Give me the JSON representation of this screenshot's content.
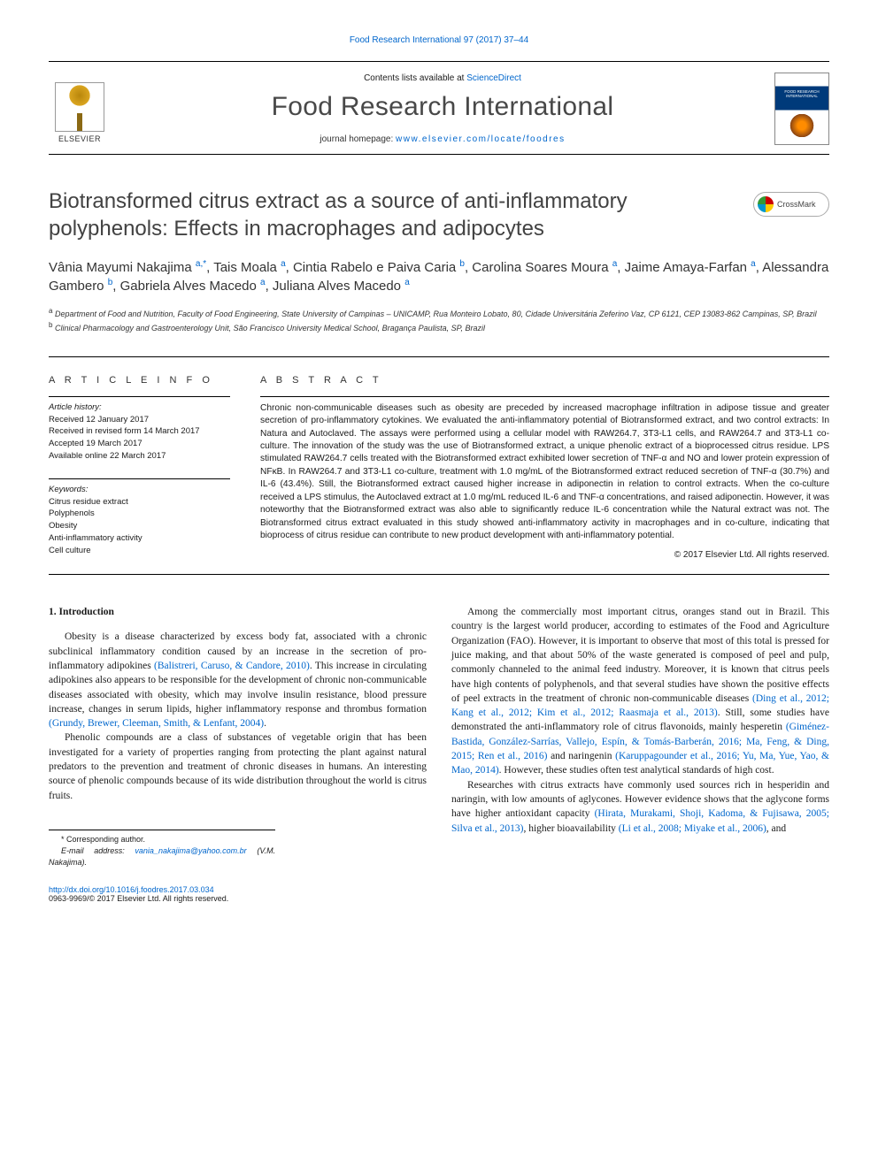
{
  "top_citation": "Food Research International 97 (2017) 37–44",
  "header": {
    "publisher": "ELSEVIER",
    "contents_prefix": "Contents lists available at ",
    "contents_link": "ScienceDirect",
    "journal": "Food Research International",
    "homepage_prefix": "journal homepage: ",
    "homepage_url": "www.elsevier.com/locate/foodres",
    "crossmark": "CrossMark"
  },
  "title": "Biotransformed citrus extract as a source of anti-inflammatory polyphenols: Effects in macrophages and adipocytes",
  "authors_html": "Vânia Mayumi Nakajima <sup>a,*</sup>, Tais Moala <sup>a</sup>, Cintia Rabelo e Paiva Caria <sup>b</sup>, Carolina Soares Moura <sup>a</sup>, Jaime Amaya-Farfan <sup>a</sup>, Alessandra Gambero <sup>b</sup>, Gabriela Alves Macedo <sup>a</sup>, Juliana Alves Macedo <sup>a</sup>",
  "affiliations": [
    "a Department of Food and Nutrition, Faculty of Food Engineering, State University of Campinas – UNICAMP, Rua Monteiro Lobato, 80, Cidade Universitária Zeferino Vaz, CP 6121, CEP 13083-862 Campinas, SP, Brazil",
    "b Clinical Pharmacology and Gastroenterology Unit, São Francisco University Medical School, Bragança Paulista, SP, Brazil"
  ],
  "info": {
    "heading": "A R T I C L E   I N F O",
    "history_label": "Article history:",
    "history": [
      "Received 12 January 2017",
      "Received in revised form 14 March 2017",
      "Accepted 19 March 2017",
      "Available online 22 March 2017"
    ],
    "keywords_label": "Keywords:",
    "keywords": [
      "Citrus residue extract",
      "Polyphenols",
      "Obesity",
      "Anti-inflammatory activity",
      "Cell culture"
    ]
  },
  "abstract": {
    "heading": "A B S T R A C T",
    "text": "Chronic non-communicable diseases such as obesity are preceded by increased macrophage infiltration in adipose tissue and greater secretion of pro-inflammatory cytokines. We evaluated the anti-inflammatory potential of Biotransformed extract, and two control extracts: In Natura and Autoclaved. The assays were performed using a cellular model with RAW264.7, 3T3-L1 cells, and RAW264.7 and 3T3-L1 co-culture. The innovation of the study was the use of Biotransformed extract, a unique phenolic extract of a bioprocessed citrus residue. LPS stimulated RAW264.7 cells treated with the Biotransformed extract exhibited lower secretion of TNF-α and NO and lower protein expression of NFκB. In RAW264.7 and 3T3-L1 co-culture, treatment with 1.0 mg/mL of the Biotransformed extract reduced secretion of TNF-α (30.7%) and IL-6 (43.4%). Still, the Biotransformed extract caused higher increase in adiponectin in relation to control extracts. When the co-culture received a LPS stimulus, the Autoclaved extract at 1.0 mg/mL reduced IL-6 and TNF-α concentrations, and raised adiponectin. However, it was noteworthy that the Biotransformed extract was also able to significantly reduce IL-6 concentration while the Natural extract was not. The Biotransformed citrus extract evaluated in this study showed anti-inflammatory activity in macrophages and in co-culture, indicating that bioprocess of citrus residue can contribute to new product development with anti-inflammatory potential.",
    "copyright": "© 2017 Elsevier Ltd. All rights reserved."
  },
  "body": {
    "section_heading": "1. Introduction",
    "col1": [
      "Obesity is a disease characterized by excess body fat, associated with a chronic subclinical inflammatory condition caused by an increase in the secretion of pro-inflammatory adipokines <span class=\"cite\">(Balistreri, Caruso, & Candore, 2010)</span>. This increase in circulating adipokines also appears to be responsible for the development of chronic non-communicable diseases associated with obesity, which may involve insulin resistance, blood pressure increase, changes in serum lipids, higher inflammatory response and thrombus formation <span class=\"cite\">(Grundy, Brewer, Cleeman, Smith, & Lenfant, 2004)</span>.",
      "Phenolic compounds are a class of substances of vegetable origin that has been investigated for a variety of properties ranging from protecting the plant against natural predators to the prevention and treatment of chronic diseases in humans. An interesting source of phenolic compounds because of its wide distribution throughout the world is citrus fruits."
    ],
    "col2": [
      "Among the commercially most important citrus, oranges stand out in Brazil. This country is the largest world producer, according to estimates of the Food and Agriculture Organization (FAO). However, it is important to observe that most of this total is pressed for juice making, and that about 50% of the waste generated is composed of peel and pulp, commonly channeled to the animal feed industry. Moreover, it is known that citrus peels have high contents of polyphenols, and that several studies have shown the positive effects of peel extracts in the treatment of chronic non-communicable diseases <span class=\"cite\">(Ding et al., 2012; Kang et al., 2012; Kim et al., 2012; Raasmaja et al., 2013)</span>. Still, some studies have demonstrated the anti-inflammatory role of citrus flavonoids, mainly hesperetin <span class=\"cite\">(Giménez-Bastida, González-Sarrías, Vallejo, Espín, & Tomás-Barberán, 2016; Ma, Feng, & Ding, 2015; Ren et al., 2016)</span> and naringenin <span class=\"cite\">(Karuppagounder et al., 2016; Yu, Ma, Yue, Yao, & Mao, 2014)</span>. However, these studies often test analytical standards of high cost.",
      "Researches with citrus extracts have commonly used sources rich in hesperidin and naringin, with low amounts of aglycones. However evidence shows that the aglycone forms have higher antioxidant capacity <span class=\"cite\">(Hirata, Murakami, Shoji, Kadoma, & Fujisawa, 2005; Silva et al., 2013)</span>, higher bioavailability <span class=\"cite\">(Li et al., 2008; Miyake et al., 2006)</span>, and"
    ]
  },
  "corresponding": {
    "label": "* Corresponding author.",
    "email_label": "E-mail address:",
    "email": "vania_nakajima@yahoo.com.br",
    "email_name": "(V.M. Nakajima)."
  },
  "footer": {
    "doi": "http://dx.doi.org/10.1016/j.foodres.2017.03.034",
    "issn_line": "0963-9969/© 2017 Elsevier Ltd. All rights reserved."
  },
  "colors": {
    "link": "#0066cc",
    "text": "#1a1a1a",
    "title_gray": "#424242",
    "journal_gray": "#484848"
  }
}
